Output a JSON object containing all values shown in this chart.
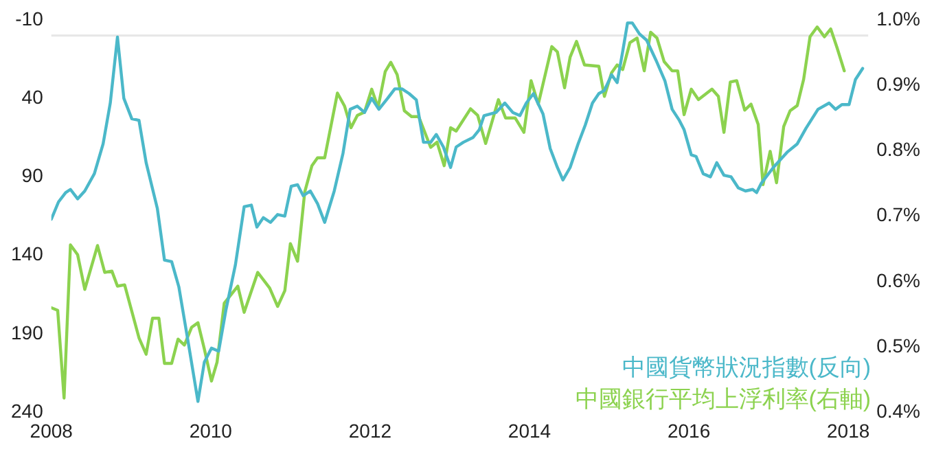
{
  "chart_data": {
    "type": "line",
    "xlim": [
      2008,
      2018.25
    ],
    "xticks": [
      2008,
      2010,
      2012,
      2014,
      2016,
      2018
    ],
    "ylim": [
      240,
      -10
    ],
    "yticks": [
      -10,
      40,
      90,
      140,
      190,
      240
    ],
    "y2lim": [
      0.4,
      1.0
    ],
    "y2ticks": [
      {
        "value": 0.4,
        "label": "0.4%"
      },
      {
        "value": 0.5,
        "label": "0.5%"
      },
      {
        "value": 0.6,
        "label": "0.6%"
      },
      {
        "value": 0.7,
        "label": "0.7%"
      },
      {
        "value": 0.8,
        "label": "0.8%"
      },
      {
        "value": 0.9,
        "label": "0.9%"
      },
      {
        "value": 1.0,
        "label": "1.0%"
      }
    ],
    "grid": false,
    "legend": "bottom right",
    "marker": "none",
    "line_style": "solid",
    "ref_lines": [
      {
        "axis": "y",
        "value": 0,
        "label": null,
        "color": "#e6e6e6"
      }
    ],
    "series": [
      {
        "name": "中國貨幣狀況指數(反向)",
        "color": "#4bb8c9",
        "axis": "y",
        "x": [
          2008.0,
          2008.09,
          2008.18,
          2008.24,
          2008.33,
          2008.42,
          2008.54,
          2008.65,
          2008.74,
          2008.83,
          2008.91,
          2009.01,
          2009.1,
          2009.19,
          2009.33,
          2009.42,
          2009.51,
          2009.6,
          2009.72,
          2009.84,
          2009.92,
          2010.01,
          2010.1,
          2010.19,
          2010.31,
          2010.42,
          2010.51,
          2010.58,
          2010.66,
          2010.75,
          2010.84,
          2010.93,
          2011.01,
          2011.09,
          2011.16,
          2011.25,
          2011.34,
          2011.43,
          2011.55,
          2011.66,
          2011.75,
          2011.84,
          2011.93,
          2012.02,
          2012.11,
          2012.22,
          2012.31,
          2012.4,
          2012.49,
          2012.58,
          2012.67,
          2012.76,
          2012.83,
          2012.92,
          2013.01,
          2013.08,
          2013.17,
          2013.29,
          2013.37,
          2013.43,
          2013.58,
          2013.69,
          2013.79,
          2013.88,
          2013.96,
          2014.05,
          2014.17,
          2014.26,
          2014.35,
          2014.42,
          2014.51,
          2014.61,
          2014.7,
          2014.79,
          2014.87,
          2014.94,
          2015.03,
          2015.1,
          2015.17,
          2015.23,
          2015.29,
          2015.38,
          2015.47,
          2015.59,
          2015.7,
          2015.79,
          2015.88,
          2015.94,
          2016.03,
          2016.09,
          2016.18,
          2016.27,
          2016.35,
          2016.44,
          2016.53,
          2016.62,
          2016.71,
          2016.8,
          2016.85,
          2016.91,
          2017.06,
          2017.15,
          2017.24,
          2017.36,
          2017.47,
          2017.62,
          2017.76,
          2017.84,
          2017.92,
          2018.01,
          2018.09,
          2018.18
        ],
        "values": [
          117,
          106,
          100,
          98,
          104,
          99,
          88,
          69,
          43,
          1,
          40,
          53,
          54,
          81,
          110,
          143,
          144,
          160,
          196,
          233,
          208,
          199,
          201,
          175,
          146,
          109,
          108,
          122,
          116,
          119,
          114,
          115,
          96,
          95,
          102,
          99,
          107,
          119,
          99,
          75,
          47,
          45,
          49,
          40,
          47,
          40,
          34,
          34,
          37,
          41,
          68,
          68,
          63,
          71,
          84,
          71,
          68,
          65,
          60,
          51,
          49,
          43,
          49,
          51,
          43,
          37,
          50,
          72,
          84,
          92,
          84,
          69,
          57,
          43,
          37,
          35,
          25,
          30,
          10,
          -8,
          -8,
          -1,
          3,
          16,
          29,
          47,
          54,
          60,
          76,
          77,
          88,
          90,
          81,
          89,
          90,
          97,
          99,
          98,
          100,
          94,
          84,
          79,
          74,
          69,
          59,
          47,
          43,
          47,
          44,
          44,
          28,
          21
        ]
      },
      {
        "name": "中國銀行平均上浮利率(右軸)",
        "color": "#8cd24f",
        "axis": "y2",
        "x": [
          2008.0,
          2008.08,
          2008.16,
          2008.24,
          2008.33,
          2008.42,
          2008.58,
          2008.67,
          2008.76,
          2008.83,
          2008.92,
          2009.1,
          2009.19,
          2009.27,
          2009.35,
          2009.42,
          2009.51,
          2009.59,
          2009.67,
          2009.76,
          2009.84,
          2009.92,
          2010.01,
          2010.08,
          2010.17,
          2010.34,
          2010.42,
          2010.59,
          2010.74,
          2010.84,
          2010.93,
          2011.0,
          2011.09,
          2011.18,
          2011.27,
          2011.34,
          2011.43,
          2011.59,
          2011.68,
          2011.76,
          2011.84,
          2011.93,
          2012.02,
          2012.1,
          2012.19,
          2012.26,
          2012.34,
          2012.43,
          2012.52,
          2012.61,
          2012.76,
          2012.84,
          2012.93,
          2013.01,
          2013.08,
          2013.26,
          2013.35,
          2013.45,
          2013.52,
          2013.61,
          2013.7,
          2013.82,
          2013.93,
          2014.02,
          2014.11,
          2014.28,
          2014.35,
          2014.44,
          2014.51,
          2014.59,
          2014.69,
          2014.87,
          2014.94,
          2015.03,
          2015.1,
          2015.17,
          2015.26,
          2015.35,
          2015.44,
          2015.52,
          2015.6,
          2015.69,
          2015.79,
          2015.86,
          2015.94,
          2016.03,
          2016.12,
          2016.29,
          2016.37,
          2016.44,
          2016.52,
          2016.6,
          2016.7,
          2016.78,
          2016.87,
          2016.93,
          2017.02,
          2017.1,
          2017.19,
          2017.27,
          2017.36,
          2017.44,
          2017.52,
          2017.61,
          2017.7,
          2017.78,
          2017.86,
          2017.95
        ],
        "values": [
          0.56,
          0.556,
          0.422,
          0.656,
          0.641,
          0.588,
          0.655,
          0.614,
          0.616,
          0.593,
          0.595,
          0.514,
          0.489,
          0.544,
          0.544,
          0.475,
          0.475,
          0.512,
          0.503,
          0.53,
          0.537,
          0.497,
          0.448,
          0.477,
          0.567,
          0.593,
          0.553,
          0.614,
          0.59,
          0.562,
          0.586,
          0.658,
          0.631,
          0.737,
          0.777,
          0.789,
          0.789,
          0.888,
          0.868,
          0.835,
          0.854,
          0.859,
          0.894,
          0.866,
          0.921,
          0.935,
          0.916,
          0.861,
          0.852,
          0.852,
          0.805,
          0.813,
          0.777,
          0.835,
          0.83,
          0.864,
          0.854,
          0.811,
          0.84,
          0.878,
          0.85,
          0.85,
          0.828,
          0.907,
          0.871,
          0.959,
          0.951,
          0.896,
          0.943,
          0.967,
          0.931,
          0.929,
          0.883,
          0.919,
          0.931,
          0.924,
          0.965,
          0.972,
          0.922,
          0.981,
          0.972,
          0.936,
          0.922,
          0.922,
          0.855,
          0.894,
          0.878,
          0.894,
          0.883,
          0.828,
          0.905,
          0.907,
          0.862,
          0.871,
          0.84,
          0.748,
          0.799,
          0.751,
          0.837,
          0.861,
          0.869,
          0.909,
          0.974,
          0.989,
          0.974,
          0.986,
          0.957,
          0.922
        ]
      }
    ]
  }
}
